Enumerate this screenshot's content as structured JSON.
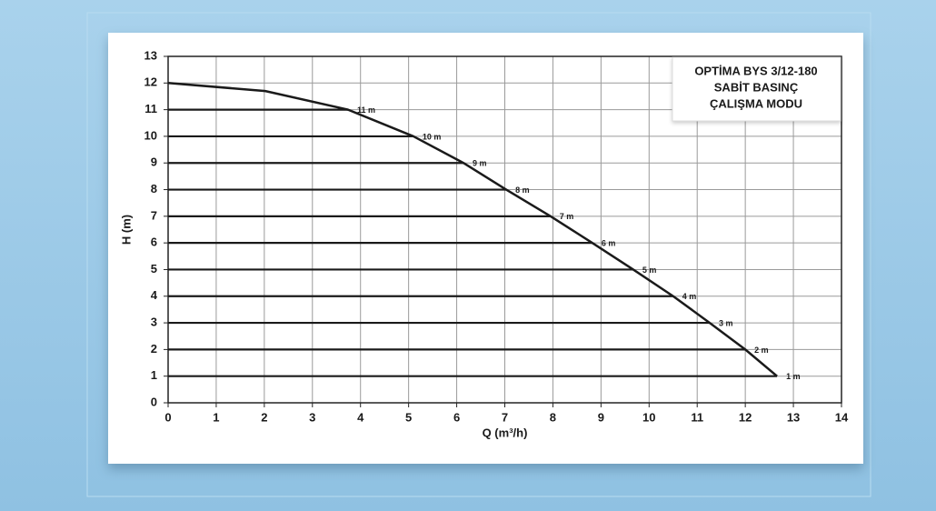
{
  "chart_data": {
    "type": "line",
    "title_lines": [
      "OPTİMA BYS 3/12-180",
      "SABİT BASINÇ",
      "ÇALIŞMA MODU"
    ],
    "xlabel": "Q (m³/h)",
    "ylabel": "H (m)",
    "x": [
      0,
      2.02,
      3.74,
      5.1,
      6.14,
      7.03,
      7.95,
      8.82,
      9.67,
      10.5,
      11.26,
      12.0,
      12.66
    ],
    "y": [
      12,
      11.7,
      11,
      10,
      9,
      8,
      7,
      6,
      5,
      4,
      3,
      2,
      1
    ],
    "point_labels": [
      null,
      null,
      "11 m",
      "10 m",
      "9 m",
      "8 m",
      "7 m",
      "6 m",
      "5 m",
      "4 m",
      "3 m",
      "2 m",
      "1 m"
    ],
    "color": "#1a1a1a",
    "xlim": [
      0,
      14
    ],
    "xticks": [
      0,
      1,
      2,
      3,
      4,
      5,
      6,
      7,
      8,
      9,
      10,
      11,
      12,
      13,
      14
    ],
    "ylim": [
      0,
      13
    ],
    "yticks": [
      0,
      1,
      2,
      3,
      4,
      5,
      6,
      7,
      8,
      9,
      10,
      11,
      12,
      13
    ],
    "grid": true
  }
}
